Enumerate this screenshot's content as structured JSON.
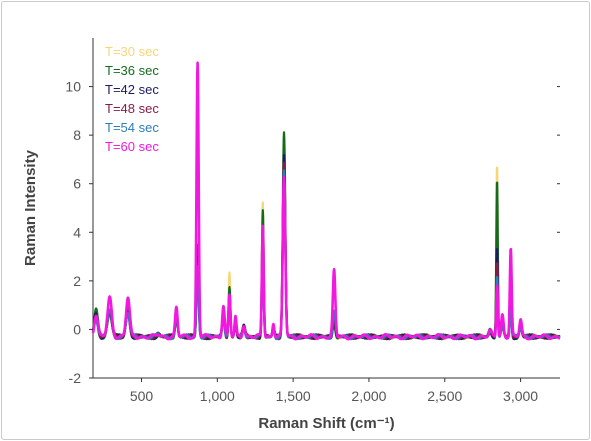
{
  "chart_data": {
    "type": "line",
    "title": "",
    "xlabel": "Raman Shift (cm⁻¹)",
    "ylabel": "Raman Intensity",
    "xlim": [
      180,
      3260
    ],
    "ylim": [
      -2,
      12
    ],
    "xticks": [
      500,
      1000,
      1500,
      2000,
      2500,
      3000
    ],
    "xtick_labels": [
      "500",
      "1,000",
      "1,500",
      "2,000",
      "2,500",
      "3,000"
    ],
    "yticks": [
      -2,
      0,
      2,
      4,
      6,
      8,
      10
    ],
    "ytick_labels": [
      "-2",
      "0",
      "2",
      "4",
      "6",
      "8",
      "10"
    ],
    "legend_position": "top-left",
    "grid": false,
    "baseline": -0.3,
    "series": [
      {
        "name": "T=30 sec",
        "color": "#f7d67a",
        "peaks": [
          [
            200,
            1.0,
            12
          ],
          [
            290,
            1.0,
            14
          ],
          [
            410,
            1.1,
            12
          ],
          [
            610,
            0.1,
            10
          ],
          [
            730,
            0.9,
            8
          ],
          [
            870,
            4.2,
            7
          ],
          [
            1040,
            0.9,
            8
          ],
          [
            1080,
            2.6,
            6
          ],
          [
            1120,
            0.8,
            6
          ],
          [
            1175,
            0.4,
            8
          ],
          [
            1300,
            5.6,
            6
          ],
          [
            1370,
            0.4,
            6
          ],
          [
            1440,
            8.2,
            8
          ],
          [
            1770,
            0.6,
            8
          ],
          [
            2800,
            0.2,
            10
          ],
          [
            2845,
            7.2,
            5
          ],
          [
            2880,
            0.5,
            8
          ],
          [
            2935,
            1.9,
            6
          ],
          [
            3000,
            0.4,
            8
          ]
        ]
      },
      {
        "name": "T=36 sec",
        "color": "#156b1d",
        "peaks": [
          [
            200,
            1.1,
            12
          ],
          [
            290,
            1.1,
            14
          ],
          [
            410,
            1.2,
            12
          ],
          [
            610,
            0.1,
            10
          ],
          [
            730,
            0.9,
            8
          ],
          [
            870,
            3.8,
            7
          ],
          [
            1040,
            0.8,
            8
          ],
          [
            1080,
            2.1,
            6
          ],
          [
            1120,
            0.8,
            6
          ],
          [
            1175,
            0.4,
            8
          ],
          [
            1300,
            5.3,
            6
          ],
          [
            1370,
            0.4,
            6
          ],
          [
            1440,
            8.5,
            8
          ],
          [
            1770,
            0.6,
            8
          ],
          [
            2800,
            0.3,
            10
          ],
          [
            2845,
            6.5,
            5
          ],
          [
            2880,
            0.6,
            8
          ],
          [
            2935,
            1.4,
            6
          ],
          [
            3000,
            0.4,
            8
          ]
        ]
      },
      {
        "name": "T=42 sec",
        "color": "#1c1c5e",
        "peaks": [
          [
            200,
            0.9,
            12
          ],
          [
            290,
            1.0,
            14
          ],
          [
            410,
            1.0,
            12
          ],
          [
            610,
            0.1,
            10
          ],
          [
            730,
            0.9,
            8
          ],
          [
            870,
            3.3,
            7
          ],
          [
            1040,
            0.8,
            8
          ],
          [
            1080,
            1.8,
            6
          ],
          [
            1120,
            0.7,
            6
          ],
          [
            1175,
            0.4,
            8
          ],
          [
            1300,
            3.6,
            6
          ],
          [
            1370,
            0.4,
            6
          ],
          [
            1440,
            7.5,
            8
          ],
          [
            1770,
            0.8,
            8
          ],
          [
            2800,
            0.2,
            10
          ],
          [
            2845,
            3.6,
            5
          ],
          [
            2880,
            0.5,
            8
          ],
          [
            2935,
            1.2,
            6
          ],
          [
            3000,
            0.4,
            8
          ]
        ]
      },
      {
        "name": "T=48 sec",
        "color": "#8a1a4a",
        "peaks": [
          [
            200,
            0.8,
            12
          ],
          [
            290,
            1.0,
            14
          ],
          [
            410,
            1.0,
            12
          ],
          [
            610,
            0.1,
            10
          ],
          [
            730,
            0.9,
            8
          ],
          [
            870,
            3.0,
            7
          ],
          [
            1040,
            0.8,
            8
          ],
          [
            1080,
            1.6,
            6
          ],
          [
            1120,
            0.7,
            6
          ],
          [
            1175,
            0.4,
            8
          ],
          [
            1300,
            3.1,
            6
          ],
          [
            1370,
            0.4,
            6
          ],
          [
            1440,
            7.1,
            8
          ],
          [
            1770,
            0.8,
            8
          ],
          [
            2800,
            0.2,
            10
          ],
          [
            2845,
            3.0,
            5
          ],
          [
            2880,
            0.5,
            8
          ],
          [
            2935,
            1.2,
            6
          ],
          [
            3000,
            0.4,
            8
          ]
        ]
      },
      {
        "name": "T=54 sec",
        "color": "#2a7fba",
        "peaks": [
          [
            200,
            0.8,
            12
          ],
          [
            290,
            1.1,
            14
          ],
          [
            410,
            1.0,
            12
          ],
          [
            610,
            0.1,
            10
          ],
          [
            730,
            0.9,
            8
          ],
          [
            870,
            2.9,
            7
          ],
          [
            1040,
            0.8,
            8
          ],
          [
            1080,
            1.5,
            6
          ],
          [
            1120,
            0.7,
            6
          ],
          [
            1175,
            0.4,
            8
          ],
          [
            1300,
            2.7,
            6
          ],
          [
            1370,
            0.4,
            6
          ],
          [
            1440,
            6.8,
            8
          ],
          [
            1770,
            1.0,
            8
          ],
          [
            2800,
            0.2,
            10
          ],
          [
            2845,
            2.5,
            5
          ],
          [
            2880,
            0.5,
            8
          ],
          [
            2935,
            1.2,
            6
          ],
          [
            3000,
            0.4,
            8
          ]
        ]
      },
      {
        "name": "T=60 sec",
        "color": "#f218e0",
        "peaks": [
          [
            200,
            0.9,
            12
          ],
          [
            290,
            1.6,
            14
          ],
          [
            410,
            1.6,
            12
          ],
          [
            610,
            0.1,
            10
          ],
          [
            730,
            1.2,
            8
          ],
          [
            870,
            11.3,
            7
          ],
          [
            1040,
            1.3,
            8
          ],
          [
            1080,
            1.7,
            6
          ],
          [
            1120,
            0.8,
            6
          ],
          [
            1175,
            0.5,
            8
          ],
          [
            1300,
            4.6,
            6
          ],
          [
            1370,
            0.6,
            6
          ],
          [
            1440,
            6.6,
            8
          ],
          [
            1770,
            2.7,
            8
          ],
          [
            2800,
            0.2,
            10
          ],
          [
            2845,
            2.2,
            5
          ],
          [
            2880,
            0.9,
            8
          ],
          [
            2935,
            3.6,
            6
          ],
          [
            3000,
            0.7,
            8
          ]
        ]
      }
    ]
  }
}
